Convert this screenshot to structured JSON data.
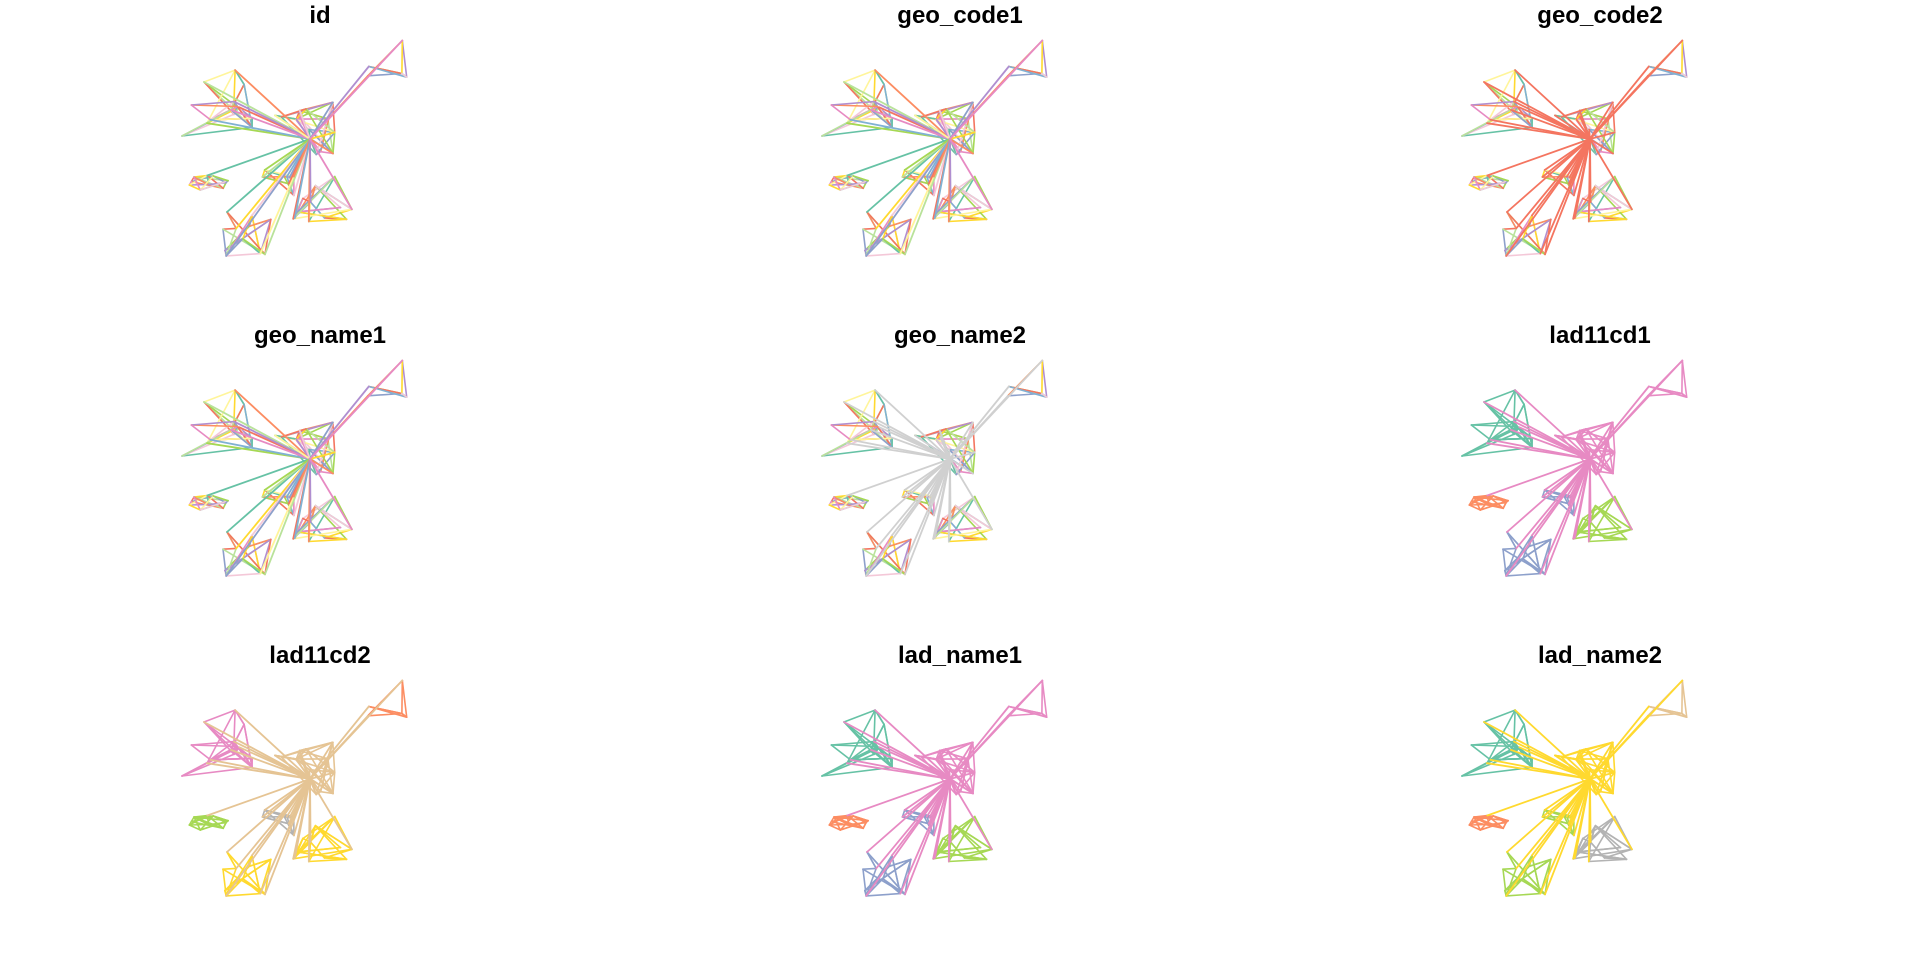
{
  "chart_data": {
    "type": "network",
    "layout": "facet-grid",
    "rows": 3,
    "cols": 3,
    "palette": {
      "teal": "#66c2a5",
      "orange": "#fc8d62",
      "blue": "#8da0cb",
      "pink": "#e78ac3",
      "green": "#a6d854",
      "yellow": "#ffd92f",
      "tan": "#e5c494",
      "grey": "#b3b3b3",
      "red": "#f47560",
      "lightgrey": "#d0d0d0",
      "purple": "#b08fd0",
      "lightyellow": "#fff59a",
      "lightblue": "#80b1d3",
      "lightpink": "#f4c8d8",
      "lightgreen": "#b9e29a"
    },
    "panels": [
      {
        "title": "id",
        "coloring": "mixed"
      },
      {
        "title": "geo_code1",
        "coloring": "mixed"
      },
      {
        "title": "geo_code2",
        "coloring": "mixed-hub-red"
      },
      {
        "title": "geo_name1",
        "coloring": "mixed"
      },
      {
        "title": "geo_name2",
        "coloring": "mixed-hub-grey"
      },
      {
        "title": "lad11cd1",
        "coloring": "clusters",
        "cluster_colors": [
          "teal",
          "pink",
          "orange",
          "blue",
          "blue",
          "green",
          "pink"
        ]
      },
      {
        "title": "lad11cd2",
        "coloring": "clusters",
        "cluster_colors": [
          "pink",
          "tan",
          "green",
          "yellow",
          "grey",
          "yellow",
          "orange"
        ]
      },
      {
        "title": "lad_name1",
        "coloring": "clusters",
        "cluster_colors": [
          "teal",
          "pink",
          "orange",
          "blue",
          "blue",
          "green",
          "pink"
        ]
      },
      {
        "title": "lad_name2",
        "coloring": "clusters",
        "cluster_colors": [
          "teal",
          "yellow",
          "orange",
          "green",
          "green",
          "grey",
          "tan"
        ]
      }
    ]
  }
}
